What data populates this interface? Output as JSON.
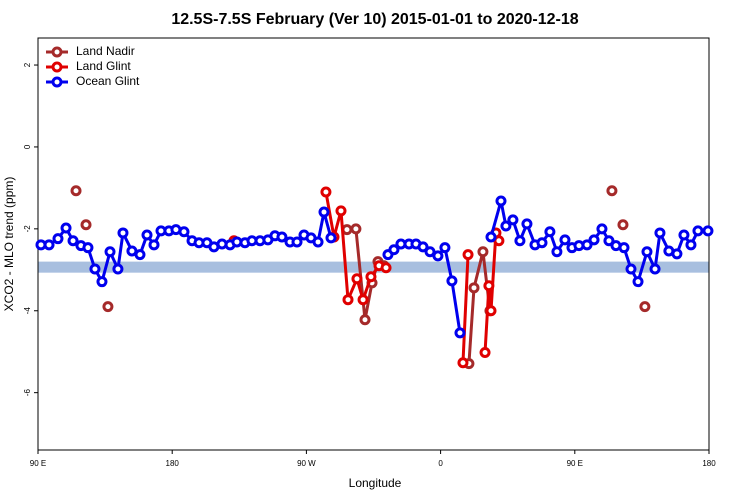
{
  "chart_data": {
    "type": "line",
    "title": "12.5S-7.5S February (Ver 10)   2015-01-01 to 2020-12-18",
    "x_label": "Longitude",
    "y_label": "XCO2 - MLO trend (ppm)",
    "xlim": [
      90,
      540
    ],
    "xticks": [
      {
        "value": 90,
        "label": "90 E"
      },
      {
        "value": 180,
        "label": "180"
      },
      {
        "value": 270,
        "label": "90 W"
      },
      {
        "value": 360,
        "label": "0"
      },
      {
        "value": 450,
        "label": "90 E"
      },
      {
        "value": 540,
        "label": "180"
      }
    ],
    "ylim": [
      -7.4,
      2.66
    ],
    "yticks": [
      2,
      0,
      -2,
      -4,
      -6
    ],
    "band": [
      -3.07,
      -2.8
    ],
    "band_color": "#a8bfdf",
    "legend": "top-left",
    "series": [
      {
        "name": "Land Nadir",
        "color": "#a52a2a",
        "x": [
          115.5,
          null,
          122.2,
          null,
          136.9,
          null,
          297.2,
          303.2,
          309.3,
          314.0,
          318.0,
          322.0,
          null,
          379.0,
          382.4,
          388.4,
          393.1,
          null,
          474.9,
          null,
          482.3,
          null,
          497.0
        ],
        "values": [
          -1.07,
          null,
          -1.9,
          null,
          -3.9,
          null,
          -2.02,
          -2.0,
          -4.22,
          -3.32,
          -2.8,
          -2.9,
          null,
          -5.29,
          -3.44,
          -2.56,
          -4.0,
          null,
          -1.07,
          null,
          -1.9,
          null,
          -3.9
        ]
      },
      {
        "name": "Land Glint",
        "color": "#e00000",
        "x": [
          221.4,
          null,
          283.1,
          288.5,
          293.2,
          297.9,
          303.9,
          308.0,
          313.3,
          318.7,
          323.4,
          null,
          375.0,
          378.4,
          null,
          389.8,
          392.4,
          393.8,
          397.1,
          399.1
        ],
        "values": [
          -2.29,
          null,
          -1.1,
          -2.2,
          -1.56,
          -3.73,
          -3.22,
          -3.73,
          -3.17,
          -2.9,
          -2.95,
          null,
          -5.27,
          -2.63,
          null,
          -5.02,
          -3.39,
          -4.0,
          -2.1,
          -2.29
        ]
      },
      {
        "name": "Ocean Glint",
        "color": "#0000ee",
        "x": [
          92.0,
          97.4,
          103.4,
          108.8,
          113.5,
          118.8,
          123.5,
          128.2,
          132.9,
          138.3,
          143.6,
          147.0,
          153.0,
          158.4,
          163.1,
          167.8,
          172.5,
          177.8,
          182.5,
          187.9,
          193.3,
          198.0,
          203.3,
          208.0,
          213.4,
          218.8,
          223.4,
          228.8,
          233.5,
          238.9,
          244.2,
          248.9,
          253.6,
          259.0,
          263.7,
          268.4,
          273.1,
          277.8,
          281.8,
          286.5,
          null,
          324.7,
          328.7,
          333.4,
          338.8,
          343.5,
          348.2,
          352.9,
          358.2,
          362.9,
          367.6,
          373.0,
          null,
          393.8,
          400.5,
          403.8,
          408.5,
          413.2,
          417.9,
          423.3,
          428.0,
          433.3,
          438.0,
          443.4,
          448.1,
          452.8,
          458.2,
          462.9,
          468.2,
          472.9,
          477.6,
          483.0,
          487.7,
          492.4,
          498.4,
          503.8,
          507.1,
          513.1,
          518.5,
          523.2,
          527.9,
          532.6,
          539.3
        ],
        "values": [
          -2.39,
          -2.39,
          -2.24,
          -1.98,
          -2.29,
          -2.41,
          -2.46,
          -2.98,
          -3.29,
          -2.56,
          -2.98,
          -2.1,
          -2.54,
          -2.63,
          -2.15,
          -2.39,
          -2.05,
          -2.05,
          -2.02,
          -2.07,
          -2.29,
          -2.34,
          -2.34,
          -2.44,
          -2.37,
          -2.39,
          -2.32,
          -2.34,
          -2.29,
          -2.29,
          -2.27,
          -2.17,
          -2.2,
          -2.32,
          -2.32,
          -2.15,
          -2.22,
          -2.32,
          -1.59,
          -2.22,
          null,
          -2.63,
          -2.51,
          -2.37,
          -2.37,
          -2.37,
          -2.44,
          -2.56,
          -2.66,
          -2.46,
          -3.27,
          -4.54,
          null,
          -2.2,
          -1.32,
          -1.93,
          -1.78,
          -2.29,
          -1.88,
          -2.39,
          -2.34,
          -2.07,
          -2.56,
          -2.27,
          -2.46,
          -2.41,
          -2.39,
          -2.27,
          -2.0,
          -2.29,
          -2.41,
          -2.46,
          -2.98,
          -3.29,
          -2.56,
          -2.98,
          -2.1,
          -2.54,
          -2.61,
          -2.15,
          -2.39,
          -2.05,
          -2.05
        ]
      }
    ]
  }
}
